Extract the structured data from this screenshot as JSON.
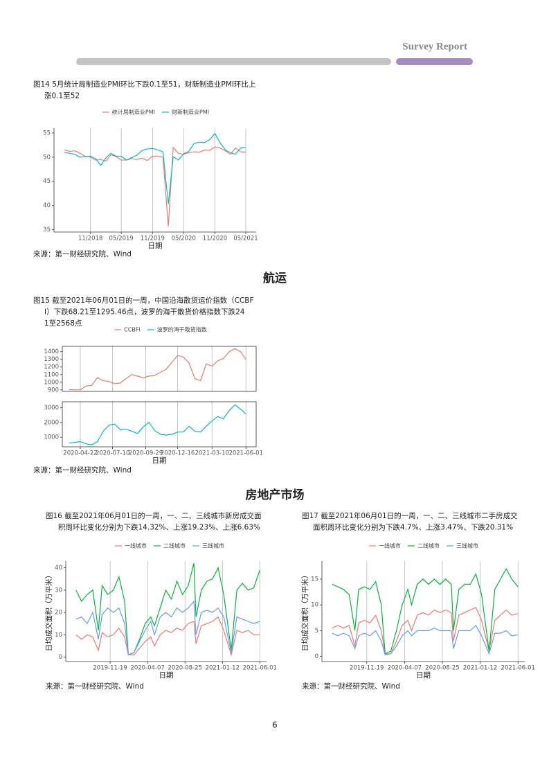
{
  "header": {
    "title": "Survey Report"
  },
  "headings": [
    "航运",
    "房地产市场"
  ],
  "page_number": "6",
  "chart_data": [
    {
      "type": "line",
      "caption": [
        "图14 5月统计局制造业PMI环比下跌0.1至51，财新制造业PMI环比上",
        "涨0.1至52"
      ],
      "source": "来源：第一财经研究院、Wind",
      "xlabel": "日期",
      "x": [
        "2018-06",
        "2018-07",
        "2018-08",
        "2018-09",
        "2018-10",
        "2018-11",
        "2018-12",
        "2019-01",
        "2019-02",
        "2019-03",
        "2019-04",
        "2019-05",
        "2019-06",
        "2019-07",
        "2019-08",
        "2019-09",
        "2019-10",
        "2019-11",
        "2019-12",
        "2020-01",
        "2020-02",
        "2020-03",
        "2020-04",
        "2020-05",
        "2020-06",
        "2020-07",
        "2020-08",
        "2020-09",
        "2020-10",
        "2020-11",
        "2020-12",
        "2021-01",
        "2021-02",
        "2021-03",
        "2021-04",
        "2021-05"
      ],
      "xlim": [
        "2018-04",
        "2021-07"
      ],
      "xticks": [
        {
          "value": "2018-11",
          "label": "11/2018"
        },
        {
          "value": "2019-05",
          "label": "05/2019"
        },
        {
          "value": "2019-11",
          "label": "11/2019"
        },
        {
          "value": "2020-05",
          "label": "05/2020"
        },
        {
          "value": "2020-11",
          "label": "11/2020"
        },
        {
          "value": "2021-05",
          "label": "05/2021"
        }
      ],
      "ylim": [
        34.5,
        56
      ],
      "yticks": [
        35,
        40,
        45,
        50,
        55
      ],
      "grid": true,
      "series": [
        {
          "name": "统计局制造业PMI",
          "color": "#F8766D",
          "values": [
            51.5,
            51.2,
            51.3,
            50.8,
            50.2,
            50.0,
            49.4,
            49.5,
            49.2,
            50.5,
            50.1,
            49.4,
            49.4,
            49.7,
            49.5,
            49.8,
            49.3,
            50.2,
            50.2,
            50.0,
            35.7,
            52.0,
            50.8,
            50.6,
            50.9,
            51.1,
            51.0,
            51.5,
            51.4,
            52.1,
            51.9,
            51.3,
            50.6,
            51.9,
            51.1,
            51.0
          ]
        },
        {
          "name": "财新制造业PMI",
          "color": "#00BFC4",
          "values": [
            51.0,
            50.8,
            50.6,
            50.0,
            50.1,
            50.2,
            49.7,
            48.3,
            49.9,
            50.8,
            50.2,
            50.2,
            49.4,
            49.9,
            50.4,
            51.4,
            51.7,
            51.8,
            51.5,
            51.1,
            40.3,
            50.1,
            49.4,
            50.7,
            51.2,
            52.8,
            53.1,
            53.0,
            53.6,
            54.9,
            53.0,
            51.5,
            50.9,
            50.6,
            51.9,
            52.0
          ]
        }
      ]
    },
    {
      "type": "facet-line",
      "caption": [
        "图15  截至2021年06月01日的一周，中国沿海散货运价指数（CCBF",
        "I）下跌68.21至1295.46点，波罗的海干散货价格指数下跌24",
        "1至2568点"
      ],
      "source": "来源：第一财经研究院、Wind",
      "xlabel": "日期",
      "x": [
        "2020-03-25",
        "2020-04-08",
        "2020-04-22",
        "2020-05-06",
        "2020-05-20",
        "2020-06-03",
        "2020-06-17",
        "2020-07-01",
        "2020-07-15",
        "2020-07-29",
        "2020-08-12",
        "2020-08-26",
        "2020-09-09",
        "2020-09-23",
        "2020-10-07",
        "2020-10-21",
        "2020-11-04",
        "2020-11-18",
        "2020-12-02",
        "2020-12-16",
        "2020-12-30",
        "2021-01-13",
        "2021-01-27",
        "2021-02-10",
        "2021-02-24",
        "2021-03-10",
        "2021-03-24",
        "2021-04-07",
        "2021-04-21",
        "2021-05-05",
        "2021-05-19",
        "2021-06-01"
      ],
      "xlim": [
        "2020-03-09",
        "2021-06-26"
      ],
      "xticks": [
        "2020-04-22",
        "2020-07-10",
        "2020-09-29",
        "2020-12-16",
        "2021-03-10",
        "2021-06-01"
      ],
      "grid": true,
      "series": [
        {
          "name": "CCBFI",
          "color": "#F8766D",
          "ylim": [
            880,
            1470
          ],
          "yticks": [
            900,
            1000,
            1100,
            1200,
            1300,
            1400
          ],
          "values": [
            905,
            900,
            900,
            950,
            960,
            1060,
            1020,
            1010,
            980,
            990,
            1050,
            1100,
            1080,
            1060,
            1080,
            1090,
            1130,
            1170,
            1260,
            1350,
            1330,
            1250,
            1050,
            1020,
            1240,
            1210,
            1280,
            1310,
            1400,
            1440,
            1400,
            1295.46
          ]
        },
        {
          "name": "波罗的海干散货指数",
          "color": "#00BFC4",
          "ylim": [
            350,
            3400
          ],
          "yticks": [
            1000,
            2000,
            3000
          ],
          "values": [
            600,
            650,
            700,
            550,
            480,
            700,
            1400,
            1800,
            1900,
            1500,
            1550,
            1400,
            1250,
            1700,
            2000,
            1450,
            1200,
            1150,
            1200,
            1350,
            1350,
            1750,
            1400,
            1350,
            1750,
            2100,
            2400,
            2250,
            2800,
            3200,
            2900,
            2568
          ]
        }
      ]
    },
    {
      "type": "line",
      "caption": [
        "图16  截至2021年06月01日的一周，一、二、三线城市新房成交面",
        "积周环比变化分别为下跌14.32%、上涨19.23%、上涨6.63%"
      ],
      "source": "来源：第一财经研究院、Wind",
      "xlabel": "日期",
      "ylabel": "日均成交面积（万平米）",
      "x": [
        "2019-07-14",
        "2019-08-04",
        "2019-08-25",
        "2019-09-15",
        "2019-10-06",
        "2019-10-20",
        "2019-11-10",
        "2019-12-01",
        "2019-12-22",
        "2020-01-12",
        "2020-01-26",
        "2020-02-16",
        "2020-03-08",
        "2020-03-29",
        "2020-04-19",
        "2020-05-03",
        "2020-05-24",
        "2020-06-14",
        "2020-07-05",
        "2020-07-26",
        "2020-08-16",
        "2020-09-06",
        "2020-09-27",
        "2020-10-05",
        "2020-10-25",
        "2020-11-15",
        "2020-12-06",
        "2020-12-27",
        "2021-01-17",
        "2021-02-14",
        "2021-03-07",
        "2021-03-28",
        "2021-04-18",
        "2021-05-09",
        "2021-06-01"
      ],
      "xlim": [
        "2019-06-06",
        "2021-06-26"
      ],
      "xticks": [
        "2019-11-19",
        "2020-04-07",
        "2020-08-25",
        "2021-01-12",
        "2021-06-01"
      ],
      "ylim": [
        -2,
        43
      ],
      "yticks": [
        0,
        10,
        20,
        30,
        40
      ],
      "grid": true,
      "series": [
        {
          "name": "一线城市",
          "color": "#F8766D",
          "values": [
            10,
            8,
            10,
            9,
            3,
            11,
            9,
            10,
            13,
            9,
            1,
            1,
            4,
            7,
            9,
            5,
            10,
            12,
            11,
            13,
            12,
            15,
            16,
            6,
            14,
            15,
            16,
            18,
            12,
            1,
            12,
            11,
            12,
            10,
            10
          ]
        },
        {
          "name": "二线城市",
          "color": "#00BA38",
          "values": [
            30,
            25,
            28,
            30,
            12,
            32,
            28,
            30,
            36,
            25,
            1,
            2,
            8,
            15,
            18,
            14,
            22,
            30,
            26,
            34,
            28,
            32,
            42,
            18,
            30,
            34,
            35,
            40,
            28,
            3,
            30,
            33,
            30,
            31,
            39
          ]
        },
        {
          "name": "三线城市",
          "color": "#619CFF",
          "values": [
            17,
            18,
            15,
            20,
            8,
            19,
            22,
            20,
            22,
            15,
            1,
            2,
            7,
            12,
            16,
            10,
            18,
            20,
            18,
            22,
            20,
            22,
            25,
            10,
            20,
            21,
            20,
            22,
            18,
            2,
            18,
            17,
            16,
            15,
            16
          ]
        }
      ]
    },
    {
      "type": "line",
      "caption": [
        "图17  截至2021年06月01日的一周，一、二、三线城市二手房成交",
        "面积周环比变化分别为下跌4.7%、上涨3.47%、下跌20.31%"
      ],
      "source": "来源：第一财经研究院、Wind",
      "xlabel": "日期",
      "ylabel": "日均成交面积（万平米）",
      "x": [
        "2019-07-14",
        "2019-08-04",
        "2019-08-25",
        "2019-09-15",
        "2019-10-06",
        "2019-10-20",
        "2019-11-10",
        "2019-12-01",
        "2019-12-22",
        "2020-01-12",
        "2020-01-26",
        "2020-02-16",
        "2020-03-08",
        "2020-03-29",
        "2020-04-19",
        "2020-05-03",
        "2020-05-24",
        "2020-06-14",
        "2020-07-05",
        "2020-07-26",
        "2020-08-16",
        "2020-09-06",
        "2020-09-27",
        "2020-10-05",
        "2020-10-25",
        "2020-11-15",
        "2020-12-06",
        "2020-12-27",
        "2021-01-17",
        "2021-02-14",
        "2021-03-07",
        "2021-03-28",
        "2021-04-18",
        "2021-05-09",
        "2021-06-01"
      ],
      "xlim": [
        "2019-06-06",
        "2021-06-26"
      ],
      "xticks": [
        "2019-11-19",
        "2020-04-07",
        "2020-08-25",
        "2021-01-12",
        "2021-06-01"
      ],
      "ylim": [
        -1,
        18.5
      ],
      "yticks": [
        0,
        5,
        10,
        15
      ],
      "grid": true,
      "series": [
        {
          "name": "一线城市",
          "color": "#F8766D",
          "values": [
            5.5,
            6,
            5.5,
            6,
            2,
            6.5,
            7,
            6.5,
            8,
            5,
            0.5,
            0.5,
            3,
            6,
            7,
            5,
            8,
            8.5,
            8,
            9,
            8.5,
            9,
            8.5,
            3,
            8,
            8.5,
            9,
            9.5,
            7,
            1,
            7,
            8,
            9,
            8,
            8.3
          ]
        },
        {
          "name": "二线城市",
          "color": "#00BA38",
          "values": [
            14,
            13.5,
            13,
            12,
            5,
            13,
            13.5,
            13,
            14.5,
            10,
            0.5,
            1,
            5,
            10,
            13,
            10,
            14,
            15,
            14,
            15,
            14,
            15,
            14,
            5,
            13,
            14,
            14,
            16,
            12,
            1,
            13,
            15,
            17,
            15,
            13.5
          ]
        },
        {
          "name": "三线城市",
          "color": "#619CFF",
          "values": [
            4.5,
            4,
            4.5,
            4,
            1.5,
            4,
            4.5,
            4,
            5,
            3,
            0.3,
            0.5,
            2,
            4,
            5,
            4,
            5,
            5,
            5,
            5.5,
            5,
            5,
            5,
            1.5,
            5,
            5,
            5,
            6,
            4,
            0.5,
            4.5,
            4.5,
            5,
            4,
            4.2
          ]
        }
      ]
    }
  ]
}
